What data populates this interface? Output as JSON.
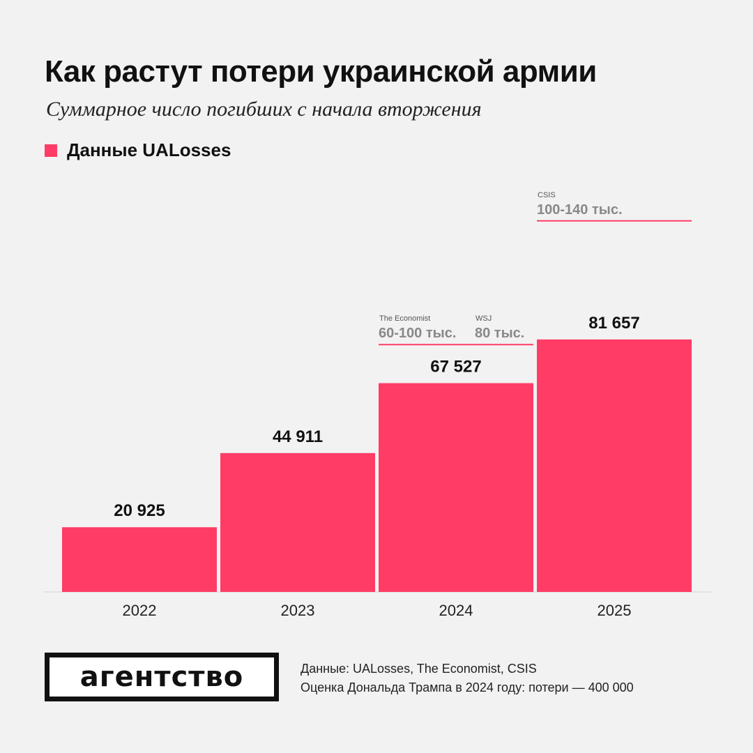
{
  "title": "Как растут потери украинской армии",
  "subtitle": "Суммарное число погибших с начала вторжения",
  "legend": {
    "label": "Данные UALosses",
    "color": "#ff3c66"
  },
  "chart_data": {
    "type": "bar",
    "categories": [
      "2022",
      "2023",
      "2024",
      "2025"
    ],
    "series": [
      {
        "name": "Данные UALosses",
        "values": [
          20925,
          44911,
          67527,
          81657
        ],
        "color": "#ff3c66"
      }
    ],
    "value_labels": [
      "20 925",
      "44 911",
      "67 527",
      "81 657"
    ],
    "ylim": [
      0,
      120000
    ],
    "grid": false,
    "legend_position": "top-left",
    "estimates": [
      {
        "source": "The Economist",
        "label": "60-100 тыс.",
        "category": "2024",
        "value": 80000
      },
      {
        "source": "WSJ",
        "label": "80 тыс.",
        "category": "2024",
        "value": 80000
      },
      {
        "source": "CSIS",
        "label": "100-140 тыс.",
        "category": "2025",
        "value": 120000
      }
    ],
    "marker_color": "#ff3c66"
  },
  "branding": {
    "logo": "агентство"
  },
  "footnotes": {
    "sources": "Данные: UALosses, The Economist, CSIS",
    "note": "Оценка Дональда Трампа в 2024 году: потери — 400 000"
  }
}
